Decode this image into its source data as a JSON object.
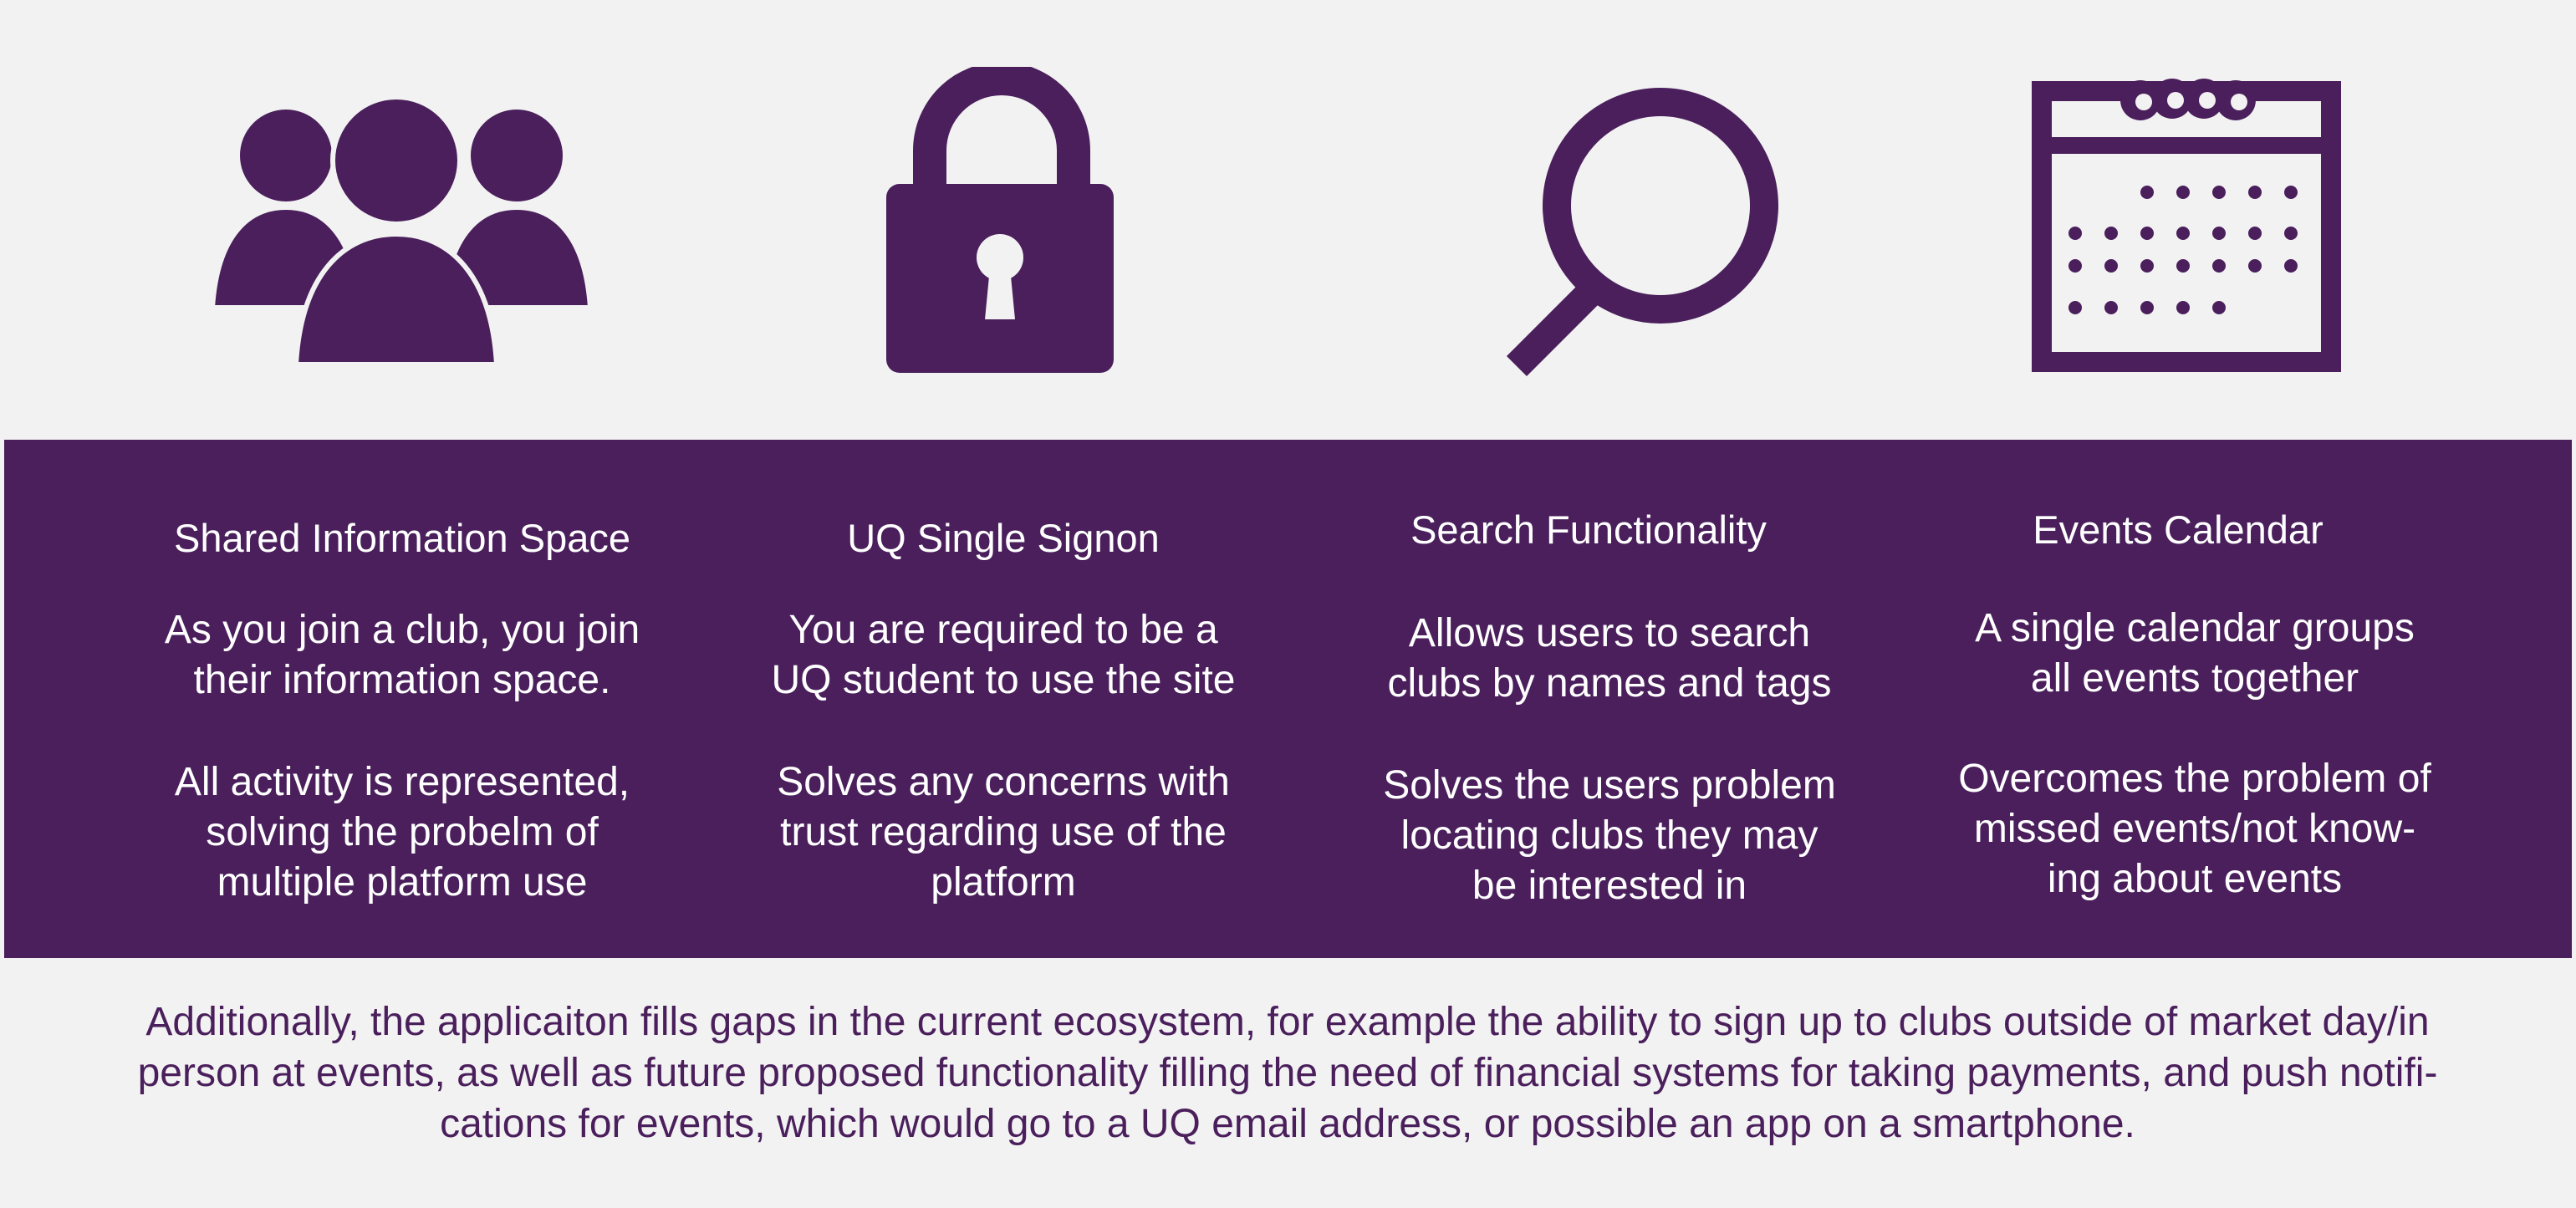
{
  "colors": {
    "accent": "#4a1f5c",
    "background": "#f2f2f2",
    "band_text": "#ffffff"
  },
  "icons": [
    "people-icon",
    "lock-icon",
    "search-icon",
    "calendar-icon"
  ],
  "features": [
    {
      "title": "Shared Information Space",
      "para1": [
        "As you join a club, you join",
        "their information space."
      ],
      "para2": [
        "All activity is represented,",
        "solving the probelm of",
        "multiple platform use"
      ]
    },
    {
      "title": "UQ Single Signon",
      "para1": [
        "You are required to be a",
        "UQ student to use the site"
      ],
      "para2": [
        "Solves any concerns with",
        "trust regarding use of the",
        "platform"
      ]
    },
    {
      "title": "Search Functionality",
      "para1": [
        "Allows users to search",
        "clubs by names and tags"
      ],
      "para2": [
        "Solves the users problem",
        "locating clubs they may",
        "be interested in"
      ]
    },
    {
      "title": "Events Calendar",
      "para1": [
        "A single calendar groups",
        "all events together"
      ],
      "para2": [
        "Overcomes the problem of",
        "missed events/not know-",
        "ing about events"
      ]
    }
  ],
  "footer": {
    "lines": [
      "Additionally, the applicaiton fills gaps in the current ecosystem, for example the ability to sign up to clubs outside of market day/in",
      "person at events, as well as future proposed functionality filling the need of financial systems for taking payments, and push notifi-",
      "cations for events, which would go to a UQ email address, or possible an app on a smartphone."
    ]
  }
}
